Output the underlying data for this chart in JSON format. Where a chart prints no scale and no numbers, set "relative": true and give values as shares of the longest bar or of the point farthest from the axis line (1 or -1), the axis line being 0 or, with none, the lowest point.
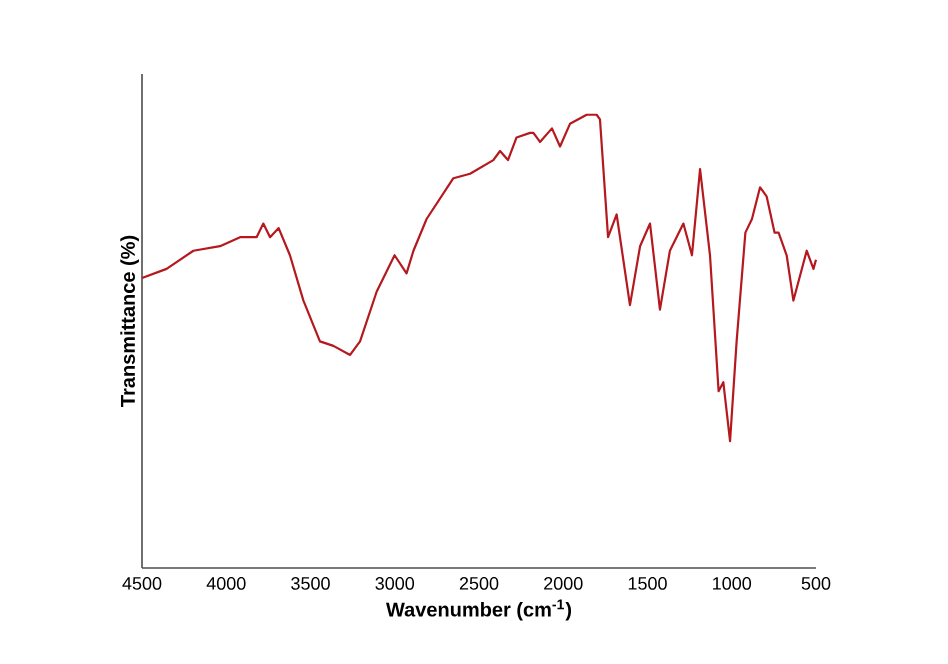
{
  "chart_data": {
    "type": "line",
    "xlabel": "Wavenumber (cm$^{-1}$)",
    "ylabel": "Transmittance (%)",
    "relative": true,
    "tick_labels": "x",
    "marker": "none",
    "xlim": [
      4500,
      500
    ],
    "xticks": [
      4500,
      4000,
      3500,
      3000,
      2500,
      2000,
      1500,
      1000,
      500
    ],
    "series": [
      {
        "color": "#b5191e",
        "x": [
          4500,
          4354,
          4195,
          4037,
          3918,
          3820,
          3780,
          3740,
          3689,
          3622,
          3542,
          3444,
          3364,
          3265,
          3206,
          3107,
          3001,
          2930,
          2889,
          2811,
          2652,
          2553,
          2415,
          2375,
          2328,
          2277,
          2197,
          2177,
          2138,
          2067,
          2019,
          1960,
          1861,
          1802,
          1782,
          1734,
          1683,
          1604,
          1544,
          1485,
          1426,
          1367,
          1287,
          1236,
          1188,
          1129,
          1078,
          1050,
          1010,
          971,
          919,
          880,
          832,
          793,
          746,
          722,
          674,
          634,
          555,
          515,
          500
        ],
        "values": [
          0.64,
          0.66,
          0.7,
          0.71,
          0.73,
          0.73,
          0.76,
          0.73,
          0.75,
          0.69,
          0.59,
          0.5,
          0.49,
          0.47,
          0.5,
          0.61,
          0.69,
          0.65,
          0.7,
          0.77,
          0.86,
          0.87,
          0.9,
          0.92,
          0.9,
          0.95,
          0.96,
          0.96,
          0.94,
          0.97,
          0.93,
          0.98,
          1.0,
          1.0,
          0.99,
          0.73,
          0.78,
          0.58,
          0.71,
          0.76,
          0.57,
          0.7,
          0.76,
          0.69,
          0.88,
          0.69,
          0.39,
          0.41,
          0.28,
          0.5,
          0.74,
          0.77,
          0.84,
          0.82,
          0.74,
          0.74,
          0.69,
          0.59,
          0.7,
          0.66,
          0.68
        ]
      }
    ]
  }
}
